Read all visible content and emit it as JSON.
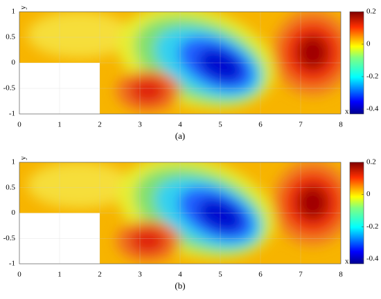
{
  "chart_data": [
    {
      "type": "contour",
      "caption": "(a)",
      "xlabel": "x",
      "ylabel": "y",
      "xlim": [
        0,
        8
      ],
      "ylim": [
        -1,
        1
      ],
      "xticks": [
        0,
        1,
        2,
        3,
        4,
        5,
        6,
        7,
        8
      ],
      "yticks": [
        -1,
        -0.5,
        0,
        0.5,
        1
      ],
      "colorbar": {
        "lim": [
          -0.43,
          0.2
        ],
        "ticks": [
          -0.4,
          -0.2,
          0,
          0.2
        ],
        "colormap": "jet"
      }
    },
    {
      "type": "contour",
      "caption": "(b)",
      "xlabel": "x",
      "ylabel": "y",
      "xlim": [
        0,
        8
      ],
      "ylim": [
        -1,
        1
      ],
      "xticks": [
        0,
        1,
        2,
        3,
        4,
        5,
        6,
        7,
        8
      ],
      "yticks": [
        -1,
        -0.5,
        0,
        0.5,
        1
      ],
      "colorbar": {
        "lim": [
          -0.43,
          0.2
        ],
        "ticks": [
          -0.4,
          -0.2,
          0,
          0.2
        ],
        "colormap": "jet"
      }
    }
  ]
}
